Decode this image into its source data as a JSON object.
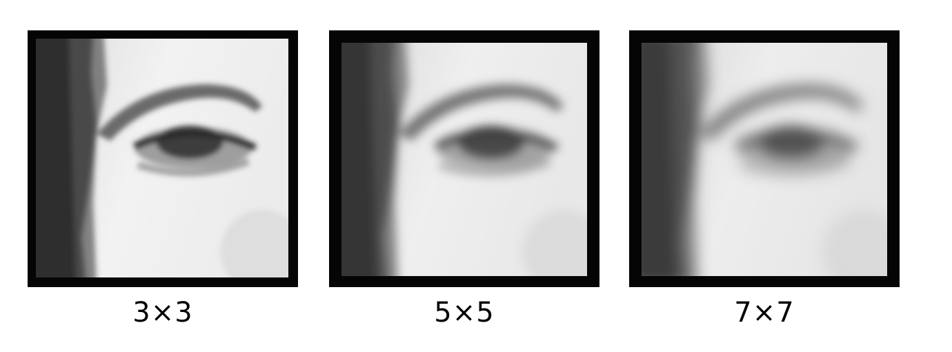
{
  "figure": {
    "panels": [
      {
        "id": "3x3",
        "label": "3×3",
        "blur_level": 1
      },
      {
        "id": "5x5",
        "label": "5×5",
        "blur_level": 2
      },
      {
        "id": "7x7",
        "label": "7×7",
        "blur_level": 3
      }
    ],
    "subject": "eye-closeup-photo"
  }
}
